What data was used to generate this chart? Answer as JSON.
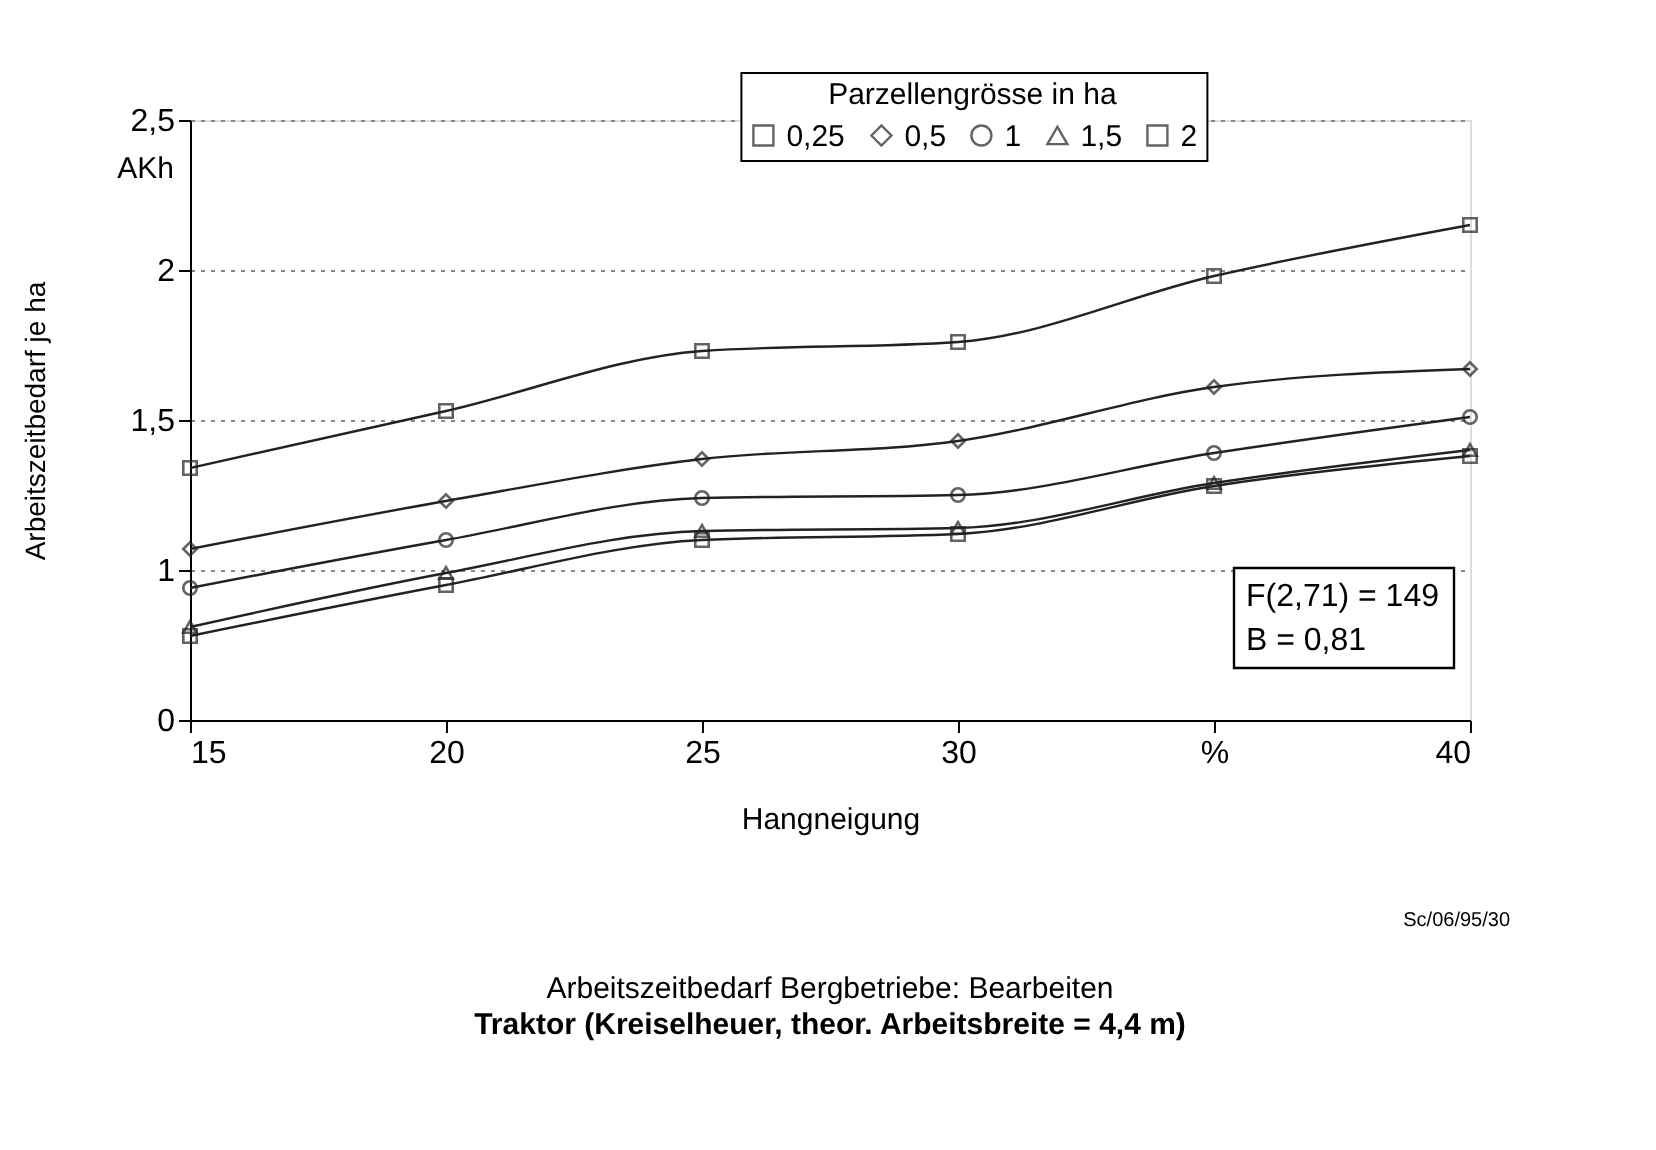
{
  "chart_data": {
    "type": "line",
    "title": "Arbeitszeitbedarf Bergbetriebe: Bearbeiten",
    "subtitle": "Traktor (Kreiselheuer, theor. Arbeitsbreite = 4,4 m)",
    "xlabel": "Hangneigung",
    "ylabel": "Arbeitszeitbedarf je ha",
    "legend_title": "Parzellengrösse in ha",
    "x": [
      15,
      20,
      25,
      30,
      35,
      40
    ],
    "series": [
      {
        "name": "0,25",
        "color": "#222222",
        "marker": "square",
        "values": [
          1.34,
          1.53,
          1.73,
          1.76,
          1.98,
          2.15
        ]
      },
      {
        "name": "0,5",
        "color": "#222222",
        "marker": "diamond",
        "values": [
          1.07,
          1.23,
          1.37,
          1.43,
          1.61,
          1.67
        ]
      },
      {
        "name": "1",
        "color": "#222222",
        "marker": "circle",
        "values": [
          0.94,
          1.1,
          1.24,
          1.25,
          1.39,
          1.51
        ]
      },
      {
        "name": "1,5",
        "color": "#222222",
        "marker": "triangle",
        "values": [
          0.81,
          0.99,
          1.13,
          1.14,
          1.29,
          1.4
        ]
      },
      {
        "name": "2",
        "color": "#222222",
        "marker": "square",
        "values": [
          0.78,
          0.95,
          1.1,
          1.12,
          1.28,
          1.38
        ]
      }
    ],
    "xlim": [
      15,
      40
    ],
    "xticks": [
      15,
      20,
      25,
      30,
      {
        "value": 35,
        "label": "%"
      },
      40
    ],
    "ylim": [
      0.5,
      2.5
    ],
    "yticks": [
      {
        "value": 0.5,
        "label": "0"
      },
      1,
      {
        "value": 1.5,
        "label": "1,5"
      },
      2,
      {
        "value": 2.5,
        "label": "2,5"
      }
    ],
    "grid": "y",
    "legend": "top",
    "line_style": "solid",
    "annotations": [
      "AKh",
      "F(2,71) = 149",
      "B = 0,81",
      "Sc/06/95/30"
    ]
  }
}
